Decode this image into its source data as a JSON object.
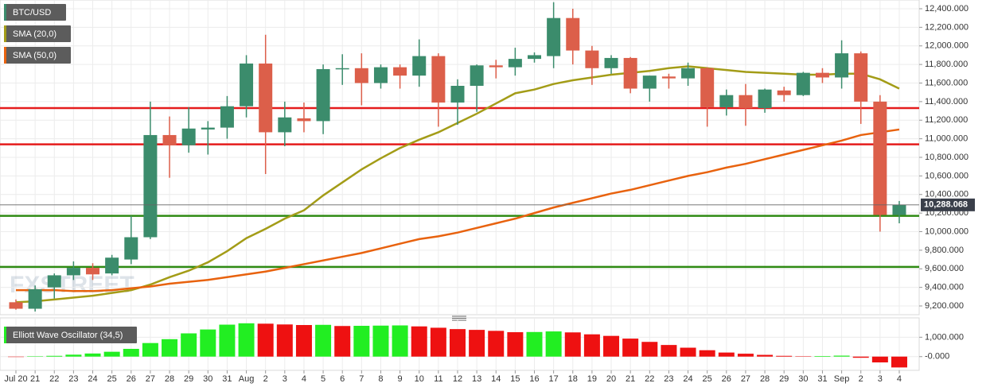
{
  "chart_data": [
    {
      "type": "candlestick",
      "name": "BTC/USD",
      "watermark": "FXSTREET",
      "up_color": "#3b8c6c",
      "down_color": "#dc5f4a",
      "open": [
        9240,
        9170,
        9400,
        9530,
        9610,
        9550,
        9700,
        9940,
        11040,
        10930,
        11100,
        11120,
        11350,
        11810,
        11070,
        11220,
        11190,
        11750,
        11760,
        11600,
        11770,
        11680,
        11890,
        11390,
        11570,
        11790,
        11770,
        11860,
        11890,
        12300,
        11950,
        11760,
        11870,
        11540,
        11670,
        11650,
        11760,
        11340,
        11470,
        11330,
        11520,
        11470,
        11710,
        11660,
        11920,
        11400,
        10180
      ],
      "high": [
        9270,
        9420,
        9550,
        9680,
        9660,
        9750,
        10170,
        11400,
        11240,
        11340,
        11190,
        11460,
        11900,
        12120,
        11400,
        11390,
        11800,
        11910,
        11920,
        11800,
        11800,
        12070,
        11920,
        11640,
        11800,
        11850,
        11980,
        11930,
        12470,
        12400,
        12000,
        11900,
        11880,
        11680,
        11700,
        11820,
        11770,
        11530,
        11590,
        11540,
        11560,
        11720,
        11760,
        12060,
        11940,
        11470,
        10330
      ],
      "low": [
        9160,
        9140,
        9280,
        9480,
        9480,
        9530,
        9650,
        9920,
        10580,
        10850,
        10830,
        11000,
        11230,
        10620,
        10920,
        11070,
        11050,
        11580,
        11360,
        11540,
        11540,
        11560,
        11130,
        11150,
        11290,
        11650,
        11680,
        11820,
        11760,
        11800,
        11580,
        11700,
        11490,
        11400,
        11540,
        11570,
        11130,
        11250,
        11140,
        11280,
        11400,
        11460,
        11600,
        11540,
        11160,
        10000,
        10090
      ],
      "close": [
        9170,
        9380,
        9530,
        9610,
        9540,
        9720,
        9940,
        11040,
        10930,
        11110,
        11120,
        11350,
        11810,
        11070,
        11230,
        11190,
        11750,
        11760,
        11600,
        11770,
        11680,
        11890,
        11390,
        11570,
        11790,
        11770,
        11860,
        11900,
        12300,
        11950,
        11760,
        11870,
        11540,
        11680,
        11650,
        11760,
        11340,
        11470,
        11330,
        11530,
        11470,
        11710,
        11660,
        11920,
        11400,
        10180,
        10288.068
      ],
      "overlays": [
        {
          "name": "SMA (20,0)",
          "color": "#a39c17",
          "values": [
            9240,
            9250,
            9270,
            9290,
            9310,
            9340,
            9370,
            9430,
            9510,
            9580,
            9670,
            9790,
            9930,
            10030,
            10140,
            10230,
            10390,
            10530,
            10670,
            10790,
            10900,
            10990,
            11070,
            11170,
            11270,
            11380,
            11490,
            11530,
            11590,
            11630,
            11660,
            11690,
            11710,
            11730,
            11760,
            11780,
            11760,
            11740,
            11720,
            11710,
            11700,
            11690,
            11690,
            11700,
            11700,
            11640,
            11540
          ]
        },
        {
          "name": "SMA (50,0)",
          "color": "#e8620e",
          "values": [
            9370,
            9370,
            9370,
            9360,
            9360,
            9370,
            9390,
            9410,
            9440,
            9460,
            9480,
            9510,
            9540,
            9570,
            9610,
            9650,
            9690,
            9730,
            9770,
            9820,
            9870,
            9920,
            9950,
            9990,
            10040,
            10090,
            10140,
            10200,
            10260,
            10310,
            10360,
            10410,
            10450,
            10500,
            10550,
            10600,
            10640,
            10690,
            10730,
            10780,
            10830,
            10880,
            10930,
            10980,
            11040,
            11070,
            11100
          ]
        }
      ],
      "levels": [
        {
          "value": 11330,
          "color": "#e51c1c"
        },
        {
          "value": 10940,
          "color": "#e51c1c"
        },
        {
          "value": 10170,
          "color": "#2e8a12"
        },
        {
          "value": 9620,
          "color": "#2e8a12"
        }
      ],
      "last_price": {
        "value": 10288.068,
        "label": "10,288.068"
      },
      "ylim": [
        9106,
        12494
      ],
      "yticks": [
        {
          "value": 9200,
          "label": "9,200.000"
        },
        {
          "value": 9400,
          "label": "9,400.000"
        },
        {
          "value": 9600,
          "label": "9,600.000"
        },
        {
          "value": 9800,
          "label": "9,800.000"
        },
        {
          "value": 10000,
          "label": "10,000.000"
        },
        {
          "value": 10200,
          "label": "10,200.000"
        },
        {
          "value": 10400,
          "label": "10,400.000"
        },
        {
          "value": 10600,
          "label": "10,600.000"
        },
        {
          "value": 10800,
          "label": "10,800.000"
        },
        {
          "value": 11000,
          "label": "11,000.000"
        },
        {
          "value": 11200,
          "label": "11,200.000"
        },
        {
          "value": 11400,
          "label": "11,400.000"
        },
        {
          "value": 11600,
          "label": "11,600.000"
        },
        {
          "value": 11800,
          "label": "11,800.000"
        },
        {
          "value": 12000,
          "label": "12,000.000"
        },
        {
          "value": 12200,
          "label": "12,200.000"
        },
        {
          "value": 12400,
          "label": "12,400.000"
        }
      ],
      "grid": true
    },
    {
      "type": "bar",
      "name": "Elliott Wave Oscillator (34,5)",
      "categories": [
        "Jul 20",
        "21",
        "22",
        "23",
        "24",
        "25",
        "26",
        "27",
        "28",
        "29",
        "30",
        "31",
        "Aug",
        "2",
        "3",
        "4",
        "5",
        "6",
        "7",
        "8",
        "9",
        "10",
        "11",
        "12",
        "13",
        "14",
        "15",
        "16",
        "17",
        "18",
        "19",
        "20",
        "21",
        "22",
        "23",
        "24",
        "25",
        "26",
        "27",
        "28",
        "29",
        "30",
        "31",
        "Sep",
        "2",
        "3",
        "4"
      ],
      "values": [
        -20,
        20,
        40,
        100,
        160,
        250,
        400,
        700,
        900,
        1200,
        1400,
        1650,
        1720,
        1700,
        1660,
        1630,
        1640,
        1580,
        1590,
        1600,
        1610,
        1560,
        1490,
        1420,
        1380,
        1330,
        1260,
        1270,
        1300,
        1250,
        1150,
        1070,
        930,
        760,
        600,
        460,
        330,
        210,
        150,
        90,
        40,
        20,
        30,
        50,
        -60,
        -300,
        -560
      ],
      "colors": [
        "#ee1111",
        "#22ee22",
        "#22ee22",
        "#22ee22",
        "#22ee22",
        "#22ee22",
        "#22ee22",
        "#22ee22",
        "#22ee22",
        "#22ee22",
        "#22ee22",
        "#22ee22",
        "#22ee22",
        "#ee1111",
        "#ee1111",
        "#ee1111",
        "#22ee22",
        "#ee1111",
        "#22ee22",
        "#22ee22",
        "#22ee22",
        "#ee1111",
        "#ee1111",
        "#ee1111",
        "#ee1111",
        "#ee1111",
        "#ee1111",
        "#22ee22",
        "#22ee22",
        "#ee1111",
        "#ee1111",
        "#ee1111",
        "#ee1111",
        "#ee1111",
        "#ee1111",
        "#ee1111",
        "#ee1111",
        "#ee1111",
        "#ee1111",
        "#ee1111",
        "#ee1111",
        "#ee1111",
        "#22ee22",
        "#22ee22",
        "#ee1111",
        "#ee1111",
        "#ee1111"
      ],
      "ylim": [
        -708,
        2000
      ],
      "yticks": [
        {
          "value": 1000,
          "label": "1,000.000"
        },
        {
          "value": 0,
          "label": "-0.000"
        }
      ],
      "grid": true
    }
  ]
}
